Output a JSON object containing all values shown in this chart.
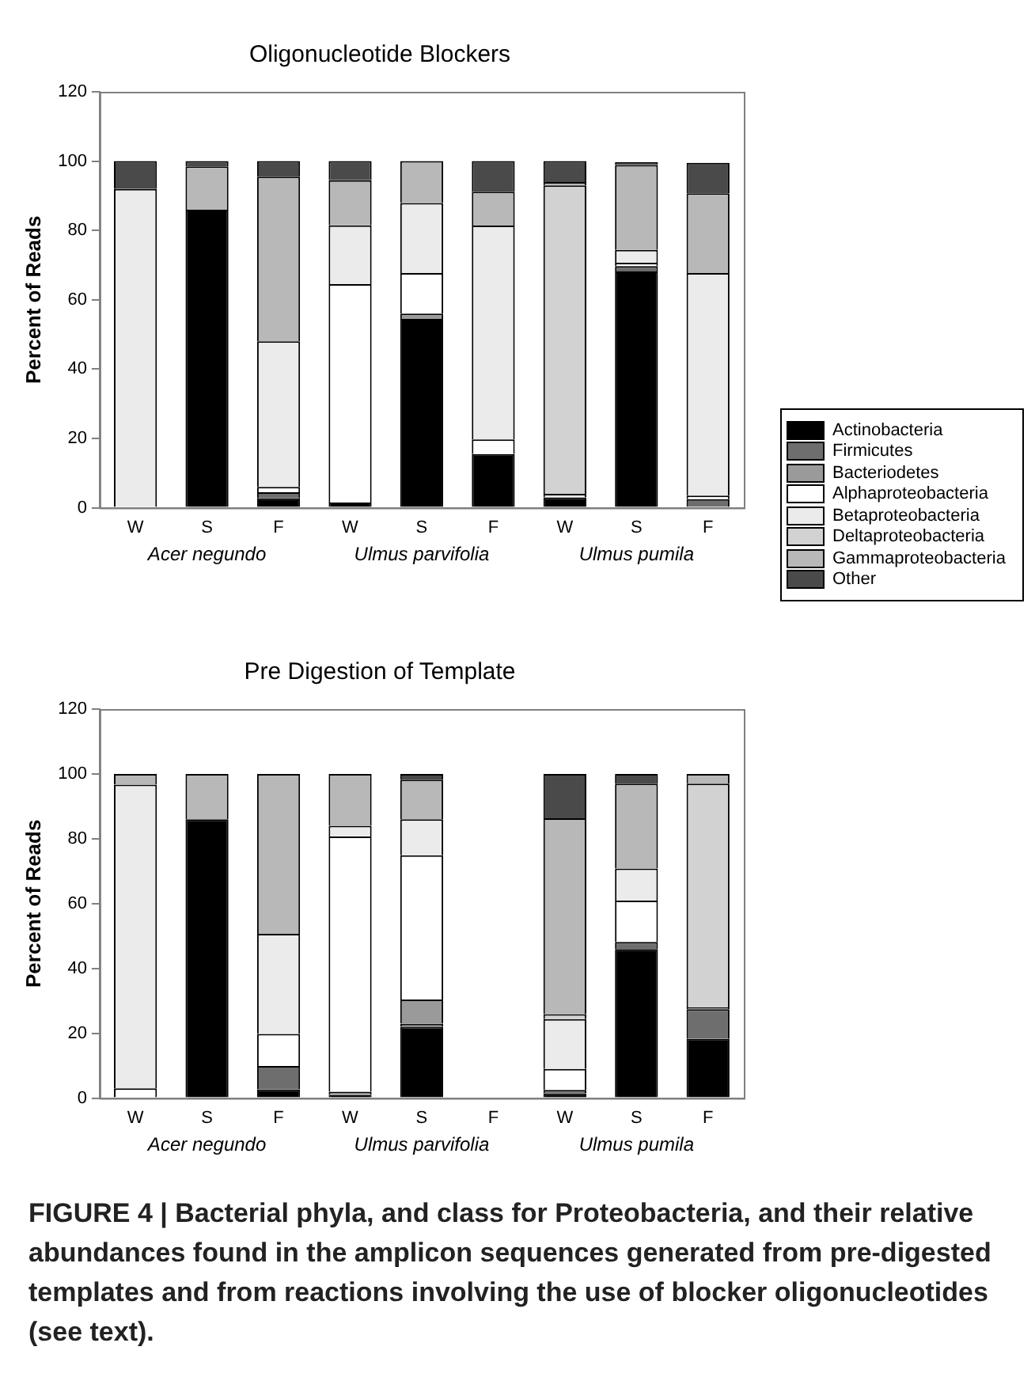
{
  "chart_data": [
    {
      "type": "bar",
      "title": "Oligonucleotide Blockers",
      "ylabel": "Percent of Reads",
      "stacked": true,
      "legend": "right",
      "grid": false,
      "categories": [
        "W",
        "S",
        "F",
        "W",
        "S",
        "F",
        "W",
        "S",
        "F"
      ],
      "ylim": [
        0,
        120
      ],
      "yticks": [
        0,
        20,
        40,
        60,
        80,
        100,
        120
      ],
      "series": [
        {
          "name": "Actinobacteria",
          "color": "#000000",
          "values": [
            null,
            86,
            2.7,
            1.5,
            54.5,
            15.5,
            3,
            68.2,
            null
          ]
        },
        {
          "name": "Firmicutes",
          "color": "#6e6e6e",
          "values": [
            null,
            null,
            1.8,
            null,
            null,
            null,
            null,
            1.5,
            2.5
          ]
        },
        {
          "name": "Bacteriodetes",
          "color": "#9a9a9a",
          "values": [
            null,
            null,
            null,
            null,
            1.5,
            null,
            null,
            null,
            null
          ]
        },
        {
          "name": "Alphaproteobacteria",
          "color": "#ffffff",
          "values": [
            null,
            null,
            1.5,
            63,
            11.7,
            4.2,
            null,
            1,
            1
          ]
        },
        {
          "name": "Betaproteobacteria",
          "color": "#ebebeb",
          "values": [
            92,
            null,
            42,
            17,
            20.2,
            61.7,
            1,
            3.7,
            64.2
          ]
        },
        {
          "name": "Deltaproteobacteria",
          "color": "#d2d2d2",
          "values": [
            null,
            null,
            null,
            null,
            null,
            null,
            89,
            null,
            null
          ]
        },
        {
          "name": "Gammaproteobacteria",
          "color": "#b8b8b8",
          "values": [
            null,
            12.5,
            47.5,
            13,
            12.1,
            9.8,
            1,
            24.5,
            23
          ]
        },
        {
          "name": "Other",
          "color": "#4a4a4a",
          "values": [
            8,
            1.5,
            4.5,
            5.5,
            null,
            8.8,
            6,
            0.8,
            8.8
          ]
        }
      ],
      "annotations": [
        "Acer negundo",
        "Ulmus parvifolia",
        "Ulmus pumila"
      ]
    },
    {
      "type": "bar",
      "title": "Pre Digestion of Template",
      "ylabel": "Percent of Reads",
      "stacked": true,
      "grid": false,
      "categories": [
        "W",
        "S",
        "F",
        "W",
        "S",
        "F",
        "W",
        "S",
        "F"
      ],
      "ylim": [
        0,
        120
      ],
      "yticks": [
        0,
        20,
        40,
        60,
        80,
        100,
        120
      ],
      "series": [
        {
          "name": "Actinobacteria",
          "color": "#000000",
          "values": [
            null,
            86,
            2.7,
            1,
            22,
            null,
            1.5,
            46,
            18.3
          ]
        },
        {
          "name": "Firmicutes",
          "color": "#6e6e6e",
          "values": [
            null,
            null,
            7.2,
            null,
            1,
            null,
            1,
            2.2,
            9.1
          ]
        },
        {
          "name": "Bacteriodetes",
          "color": "#9a9a9a",
          "values": [
            null,
            null,
            null,
            1,
            7.4,
            null,
            null,
            null,
            0.6
          ]
        },
        {
          "name": "Alphaproteobacteria",
          "color": "#ffffff",
          "values": [
            3,
            null,
            9.9,
            78.7,
            44.5,
            null,
            6.5,
            12.7,
            null
          ]
        },
        {
          "name": "Betaproteobacteria",
          "color": "#ebebeb",
          "values": [
            93.7,
            null,
            30.9,
            3.3,
            11.1,
            null,
            15.4,
            9.9,
            null
          ]
        },
        {
          "name": "Deltaproteobacteria",
          "color": "#d2d2d2",
          "values": [
            null,
            null,
            null,
            null,
            null,
            null,
            1.5,
            null,
            69
          ]
        },
        {
          "name": "Gammaproteobacteria",
          "color": "#b8b8b8",
          "values": [
            3.3,
            14,
            49.3,
            16,
            12.2,
            null,
            60.4,
            26.2,
            3
          ]
        },
        {
          "name": "Other",
          "color": "#4a4a4a",
          "values": [
            null,
            null,
            null,
            null,
            1.8,
            null,
            13.7,
            3,
            null
          ]
        }
      ],
      "legend": "right",
      "annotations": [
        "Acer negundo",
        "Ulmus parvifolia",
        "Ulmus pumila",
        "FIGURE 4 | Bacterial phyla, and class for Proteobacteria, and their relative abundances found in the amplicon sequences generated from pre-digested templates and from reactions involving the use of blocker oligonucleotides (see text)."
      ]
    }
  ]
}
